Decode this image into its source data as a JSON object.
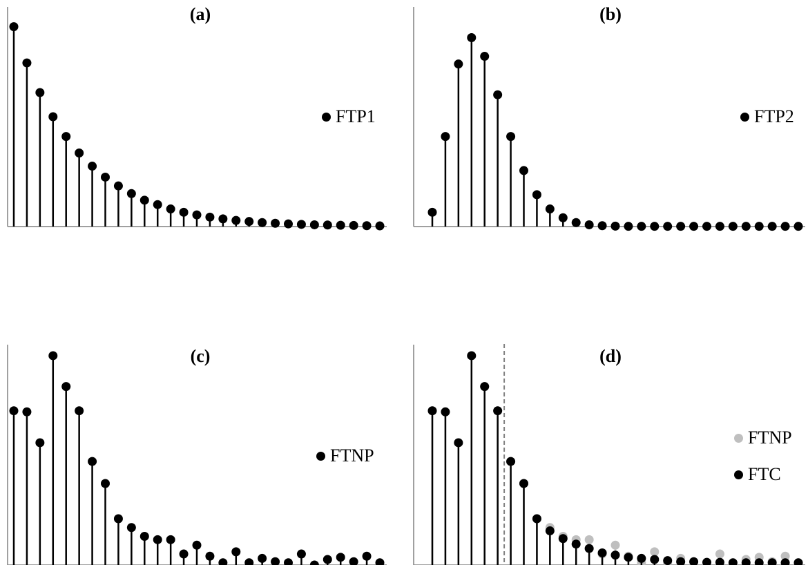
{
  "colors": {
    "primary": "#000000",
    "secondary": "#bfbfbf",
    "axis": "#808080",
    "divider": "#808080"
  },
  "chart_data": [
    {
      "type": "scatter",
      "style": "stem",
      "title": "(a)",
      "legend_position": "right",
      "grid": false,
      "ylim": [
        0,
        1
      ],
      "series": [
        {
          "name": "FTP1",
          "color": "#000000",
          "values": [
            0.91,
            0.745,
            0.61,
            0.5,
            0.41,
            0.335,
            0.275,
            0.225,
            0.185,
            0.15,
            0.12,
            0.1,
            0.08,
            0.065,
            0.053,
            0.043,
            0.035,
            0.028,
            0.023,
            0.018,
            0.015,
            0.012,
            0.01,
            0.008,
            0.007,
            0.006,
            0.005,
            0.004,
            0.003
          ]
        }
      ]
    },
    {
      "type": "scatter",
      "style": "stem",
      "title": "(b)",
      "legend_position": "right",
      "grid": false,
      "ylim": [
        0,
        1
      ],
      "series": [
        {
          "name": "FTP2",
          "color": "#000000",
          "values": [
            0.065,
            0.41,
            0.74,
            0.86,
            0.775,
            0.6,
            0.41,
            0.255,
            0.145,
            0.08,
            0.04,
            0.018,
            0.008,
            0.004,
            0.002,
            0.001,
            0.001,
            0.001,
            0.001,
            0.001,
            0.001,
            0.001,
            0.001,
            0.001,
            0.001,
            0.001,
            0.001,
            0.001,
            0.001
          ]
        }
      ]
    },
    {
      "type": "scatter",
      "style": "stem",
      "title": "(c)",
      "legend_position": "right",
      "grid": false,
      "ylim": [
        0,
        1
      ],
      "series": [
        {
          "name": "FTNP",
          "color": "#000000",
          "values": [
            0.7,
            0.695,
            0.555,
            0.95,
            0.81,
            0.7,
            0.47,
            0.37,
            0.21,
            0.17,
            0.13,
            0.115,
            0.115,
            0.05,
            0.09,
            0.04,
            0.01,
            0.06,
            0.01,
            0.03,
            0.015,
            0.01,
            0.05,
            0.0,
            0.025,
            0.035,
            0.015,
            0.04,
            0.01
          ]
        }
      ]
    },
    {
      "type": "scatter",
      "style": "stem",
      "title": "(d)",
      "legend_position": "right",
      "grid": false,
      "ylim": [
        0,
        1
      ],
      "vline_after_index": 6,
      "series": [
        {
          "name": "FTNP",
          "color": "#bfbfbf",
          "values": [
            0.7,
            0.695,
            0.555,
            0.95,
            0.81,
            0.7,
            0.47,
            0.37,
            0.21,
            0.17,
            0.13,
            0.115,
            0.115,
            0.05,
            0.09,
            0.04,
            0.01,
            0.06,
            0.01,
            0.03,
            0.015,
            0.01,
            0.05,
            0.0,
            0.025,
            0.035,
            0.015,
            0.04,
            0.01
          ]
        },
        {
          "name": "FTC",
          "color": "#000000",
          "values": [
            0.7,
            0.695,
            0.555,
            0.95,
            0.81,
            0.7,
            0.47,
            0.37,
            0.21,
            0.155,
            0.12,
            0.095,
            0.075,
            0.055,
            0.045,
            0.035,
            0.03,
            0.025,
            0.02,
            0.015,
            0.015,
            0.012,
            0.012,
            0.01,
            0.01,
            0.01,
            0.01,
            0.01,
            0.01
          ]
        }
      ]
    }
  ]
}
